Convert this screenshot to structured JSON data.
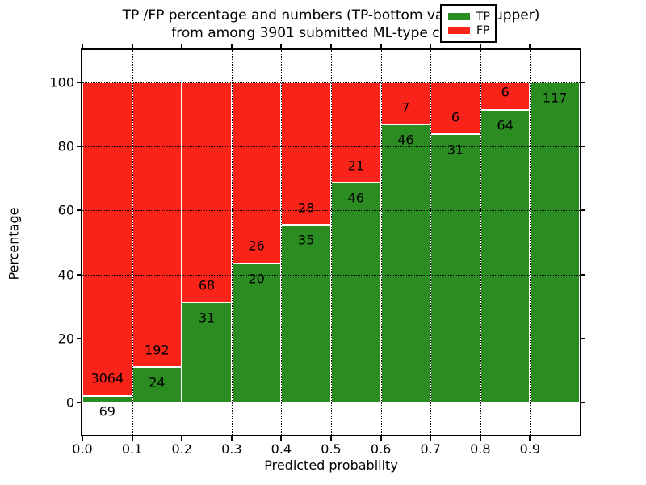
{
  "chart_data": {
    "type": "bar",
    "stacked": true,
    "title_lines": [
      "TP /FP percentage and numbers (TP-bottom value, FP-upper)",
      "from among 3901 submitted ML-type contacts"
    ],
    "xlabel": "Predicted probability",
    "ylabel": "Percentage",
    "total_contacts": 3901,
    "bin_width": 0.1,
    "categories": [
      "0.0-0.1",
      "0.1-0.2",
      "0.2-0.3",
      "0.3-0.4",
      "0.4-0.5",
      "0.5-0.6",
      "0.6-0.7",
      "0.7-0.8",
      "0.8-0.9",
      "0.9-1.0"
    ],
    "x_tick_labels": [
      "0.0",
      "0.1",
      "0.2",
      "0.3",
      "0.4",
      "0.5",
      "0.6",
      "0.7",
      "0.8",
      "0.9"
    ],
    "y_tick_values": [
      0,
      20,
      40,
      60,
      80,
      100
    ],
    "xlim": [
      0,
      1
    ],
    "ylim": [
      -10,
      110
    ],
    "grid": true,
    "series": [
      {
        "name": "TP",
        "color": "#2a8c21",
        "counts": [
          69,
          24,
          31,
          20,
          35,
          46,
          46,
          31,
          64,
          117
        ]
      },
      {
        "name": "FP",
        "color": "#fa231a",
        "counts": [
          3064,
          192,
          68,
          26,
          28,
          21,
          7,
          6,
          6,
          0
        ]
      }
    ],
    "tp_percent": [
      2.2,
      11.1,
      31.3,
      43.5,
      55.6,
      68.7,
      86.8,
      83.8,
      91.4,
      100.0
    ],
    "legend": {
      "position": "upper right",
      "items": [
        {
          "label": "TP",
          "color": "#2a8c21"
        },
        {
          "label": "FP",
          "color": "#fa231a"
        }
      ]
    },
    "label_note": "TP-bottom value, FP-upper"
  }
}
